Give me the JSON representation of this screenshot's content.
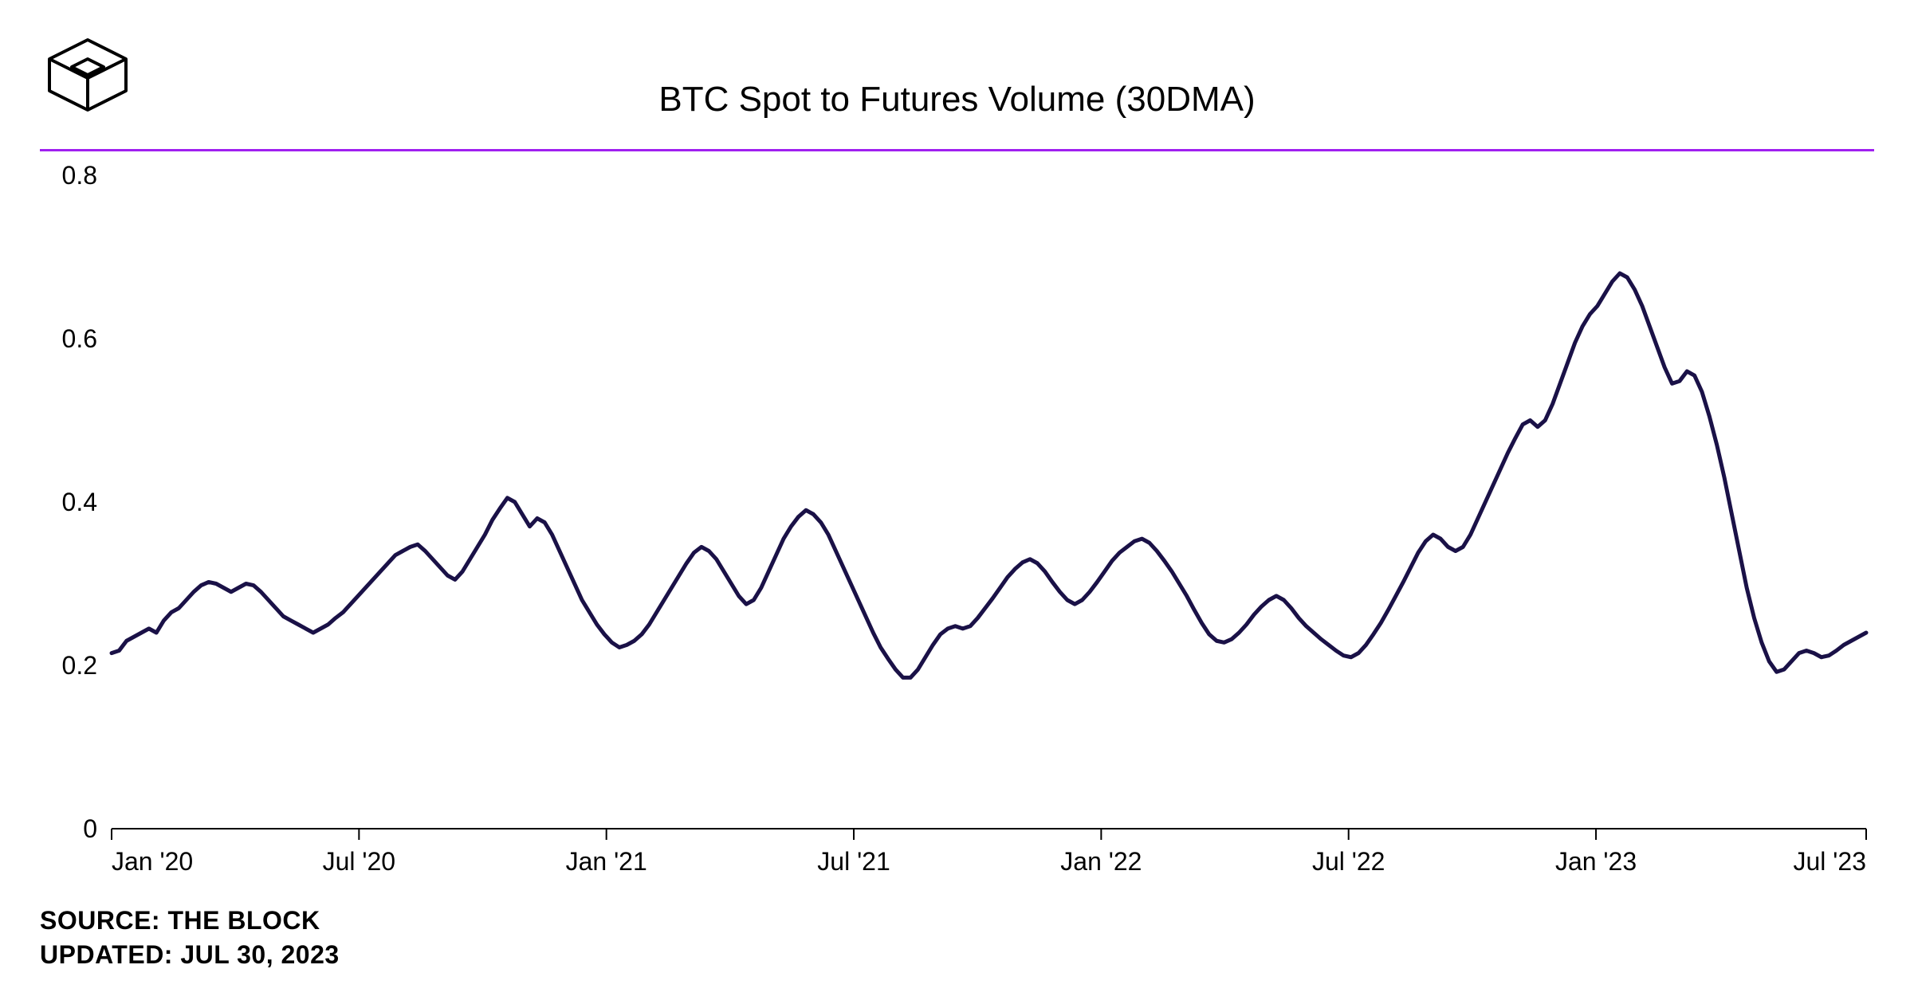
{
  "chart": {
    "type": "line",
    "title": "BTC Spot to Futures Volume (30DMA)",
    "title_fontsize": 44,
    "title_color": "#000000",
    "background_color": "#ffffff",
    "separator_color": "#a020f0",
    "line_color": "#1a1147",
    "line_width": 5,
    "axis_color": "#000000",
    "axis_width": 2,
    "tick_fontsize": 32,
    "tick_color": "#000000",
    "ylim": [
      0,
      0.8
    ],
    "yticks": [
      0,
      0.2,
      0.4,
      0.6,
      0.8
    ],
    "ytick_labels": [
      "0",
      "0.2",
      "0.4",
      "0.6",
      "0.8"
    ],
    "xtick_positions": [
      0,
      0.141,
      0.282,
      0.423,
      0.564,
      0.705,
      0.846,
      1.0
    ],
    "xtick_labels": [
      "Jan '20",
      "Jul '20",
      "Jan '21",
      "Jul '21",
      "Jan '22",
      "Jul '22",
      "Jan '23",
      "Jul '23"
    ],
    "values": [
      0.215,
      0.218,
      0.23,
      0.235,
      0.24,
      0.245,
      0.24,
      0.255,
      0.265,
      0.27,
      0.28,
      0.29,
      0.298,
      0.302,
      0.3,
      0.295,
      0.29,
      0.295,
      0.3,
      0.298,
      0.29,
      0.28,
      0.27,
      0.26,
      0.255,
      0.25,
      0.245,
      0.24,
      0.245,
      0.25,
      0.258,
      0.265,
      0.275,
      0.285,
      0.295,
      0.305,
      0.315,
      0.325,
      0.335,
      0.34,
      0.345,
      0.348,
      0.34,
      0.33,
      0.32,
      0.31,
      0.305,
      0.315,
      0.33,
      0.345,
      0.36,
      0.378,
      0.392,
      0.405,
      0.4,
      0.385,
      0.37,
      0.38,
      0.375,
      0.36,
      0.34,
      0.32,
      0.3,
      0.28,
      0.265,
      0.25,
      0.238,
      0.228,
      0.222,
      0.225,
      0.23,
      0.238,
      0.25,
      0.265,
      0.28,
      0.295,
      0.31,
      0.325,
      0.338,
      0.345,
      0.34,
      0.33,
      0.315,
      0.3,
      0.285,
      0.275,
      0.28,
      0.295,
      0.315,
      0.335,
      0.355,
      0.37,
      0.382,
      0.39,
      0.385,
      0.375,
      0.36,
      0.34,
      0.32,
      0.3,
      0.28,
      0.26,
      0.24,
      0.222,
      0.208,
      0.195,
      0.185,
      0.185,
      0.195,
      0.21,
      0.225,
      0.238,
      0.245,
      0.248,
      0.245,
      0.248,
      0.258,
      0.27,
      0.282,
      0.295,
      0.308,
      0.318,
      0.326,
      0.33,
      0.325,
      0.315,
      0.302,
      0.29,
      0.28,
      0.275,
      0.28,
      0.29,
      0.302,
      0.315,
      0.328,
      0.338,
      0.345,
      0.352,
      0.355,
      0.35,
      0.34,
      0.328,
      0.315,
      0.3,
      0.285,
      0.268,
      0.252,
      0.238,
      0.23,
      0.228,
      0.232,
      0.24,
      0.25,
      0.262,
      0.272,
      0.28,
      0.285,
      0.28,
      0.27,
      0.258,
      0.248,
      0.24,
      0.232,
      0.225,
      0.218,
      0.212,
      0.21,
      0.215,
      0.225,
      0.238,
      0.252,
      0.268,
      0.285,
      0.302,
      0.32,
      0.338,
      0.352,
      0.36,
      0.355,
      0.345,
      0.34,
      0.345,
      0.36,
      0.38,
      0.4,
      0.42,
      0.44,
      0.46,
      0.478,
      0.495,
      0.5,
      0.492,
      0.5,
      0.52,
      0.545,
      0.57,
      0.595,
      0.615,
      0.63,
      0.64,
      0.655,
      0.67,
      0.68,
      0.675,
      0.66,
      0.64,
      0.615,
      0.59,
      0.565,
      0.545,
      0.548,
      0.56,
      0.555,
      0.535,
      0.505,
      0.47,
      0.43,
      0.385,
      0.34,
      0.295,
      0.258,
      0.228,
      0.205,
      0.192,
      0.195,
      0.205,
      0.215,
      0.218,
      0.215,
      0.21,
      0.212,
      0.218,
      0.225,
      0.23,
      0.235,
      0.24
    ]
  },
  "footer": {
    "source_label": "SOURCE:",
    "source_value": "THE BLOCK",
    "updated_label": "UPDATED:",
    "updated_value": "JUL 30, 2023"
  }
}
